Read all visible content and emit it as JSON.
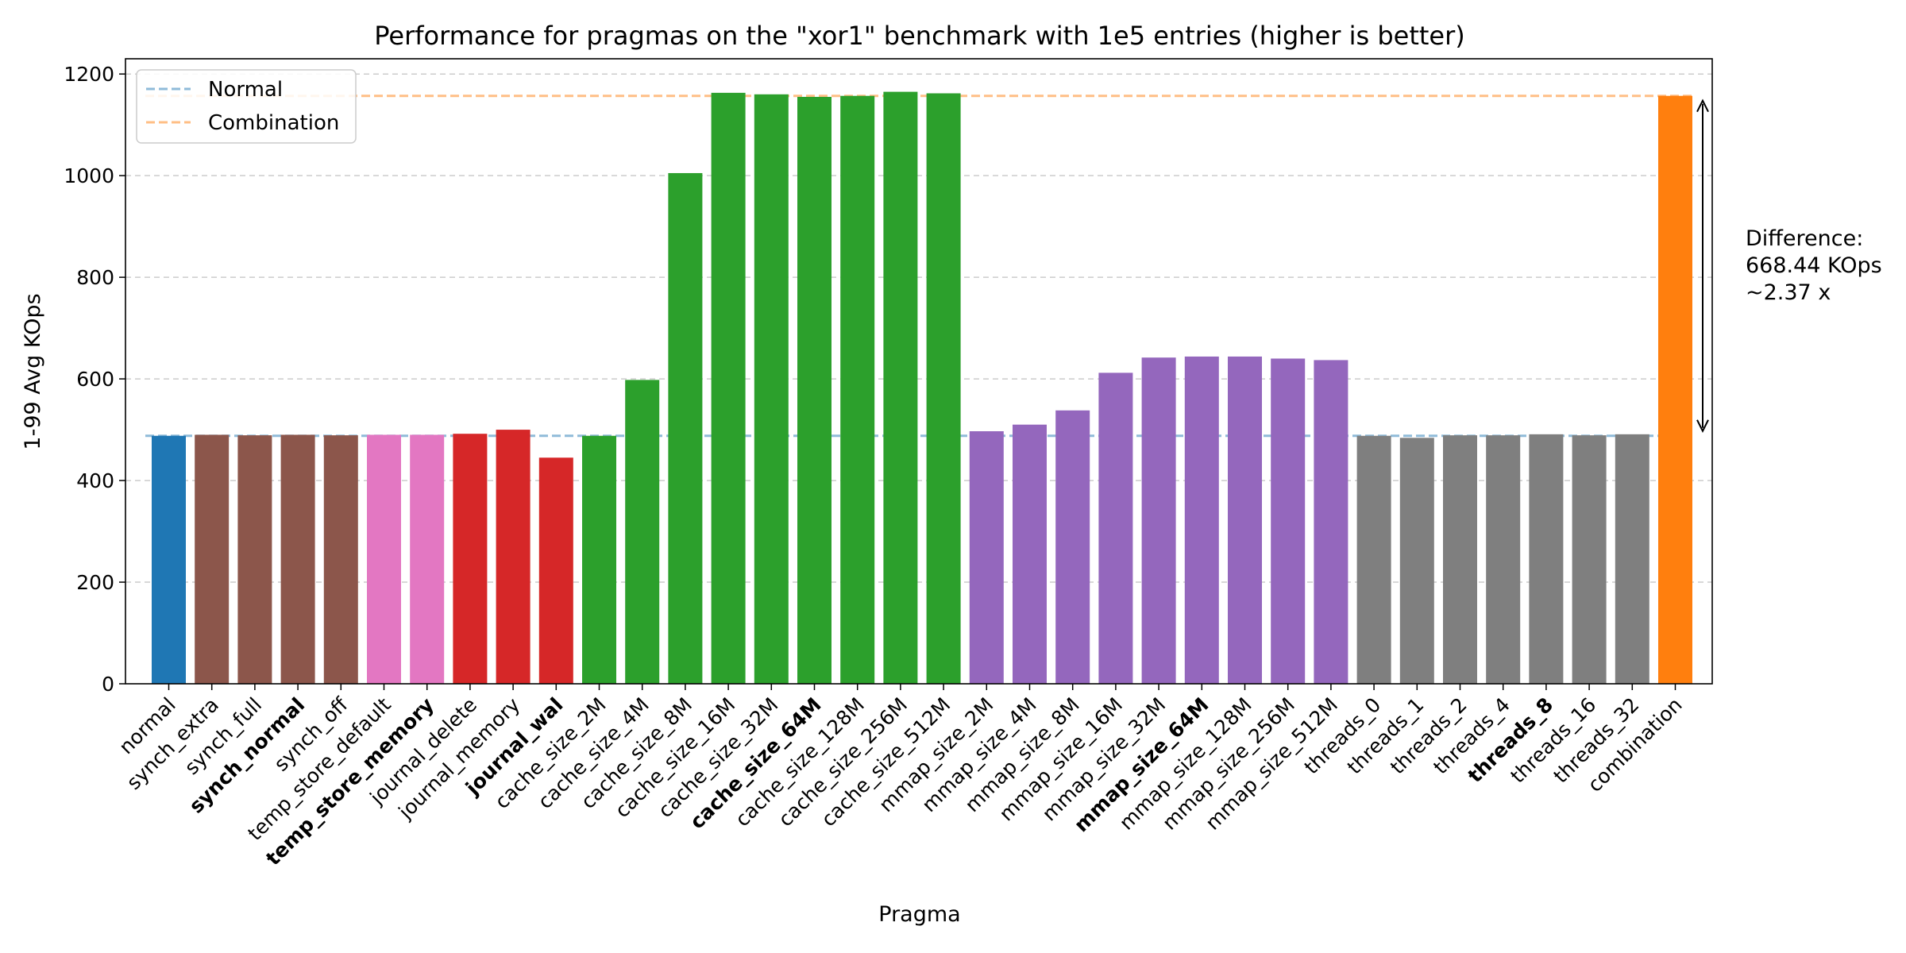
{
  "chart_data": {
    "type": "bar",
    "title": "Performance for pragmas on the \"xor1\" benchmark with 1e5 entries (higher is better)",
    "xlabel": "Pragma",
    "ylabel": "1-99 Avg KOps",
    "ylim": [
      0,
      1230
    ],
    "yticks": [
      0,
      200,
      400,
      600,
      800,
      1000,
      1200
    ],
    "grid": "y, dashed",
    "legend_position": "top-left",
    "colors": {
      "normal": "#1f77b4",
      "synch": "#8c564b",
      "temp_store": "#e377c2",
      "journal": "#d62728",
      "cache_size": "#2ca02c",
      "mmap_size": "#9467bd",
      "threads": "#7f7f7f",
      "combination": "#ff7f0e"
    },
    "categories": [
      "normal",
      "synch_extra",
      "synch_full",
      "synch_normal",
      "synch_off",
      "temp_store_default",
      "temp_store_memory",
      "journal_delete",
      "journal_memory",
      "journal_wal",
      "cache_size_2M",
      "cache_size_4M",
      "cache_size_8M",
      "cache_size_16M",
      "cache_size_32M",
      "cache_size_64M",
      "cache_size_128M",
      "cache_size_256M",
      "cache_size_512M",
      "mmap_size_2M",
      "mmap_size_4M",
      "mmap_size_8M",
      "mmap_size_16M",
      "mmap_size_32M",
      "mmap_size_64M",
      "mmap_size_128M",
      "mmap_size_256M",
      "mmap_size_512M",
      "threads_0",
      "threads_1",
      "threads_2",
      "threads_4",
      "threads_8",
      "threads_16",
      "threads_32",
      "combination"
    ],
    "groups": [
      "normal",
      "synch",
      "synch",
      "synch",
      "synch",
      "temp_store",
      "temp_store",
      "journal",
      "journal",
      "journal",
      "cache_size",
      "cache_size",
      "cache_size",
      "cache_size",
      "cache_size",
      "cache_size",
      "cache_size",
      "cache_size",
      "cache_size",
      "mmap_size",
      "mmap_size",
      "mmap_size",
      "mmap_size",
      "mmap_size",
      "mmap_size",
      "mmap_size",
      "mmap_size",
      "mmap_size",
      "threads",
      "threads",
      "threads",
      "threads",
      "threads",
      "threads",
      "threads",
      "combination"
    ],
    "bold_labels": [
      "synch_normal",
      "temp_store_memory",
      "journal_wal",
      "cache_size_64M",
      "mmap_size_64M",
      "threads_8"
    ],
    "values": [
      488,
      490,
      489,
      490,
      489,
      490,
      490,
      492,
      500,
      445,
      488,
      598,
      1005,
      1163,
      1160,
      1155,
      1157,
      1165,
      1162,
      497,
      510,
      538,
      612,
      642,
      644,
      644,
      640,
      637,
      488,
      484,
      489,
      489,
      491,
      489,
      491,
      1157
    ],
    "reference_lines": [
      {
        "name": "Normal",
        "value": 488,
        "color": "#1f77b4"
      },
      {
        "name": "Combination",
        "value": 1157,
        "color": "#ff7f0e"
      }
    ],
    "annotation": {
      "lines": [
        "Difference:",
        "668.44 KOps",
        "~2.37 x"
      ],
      "from": 488,
      "to": 1157
    }
  }
}
